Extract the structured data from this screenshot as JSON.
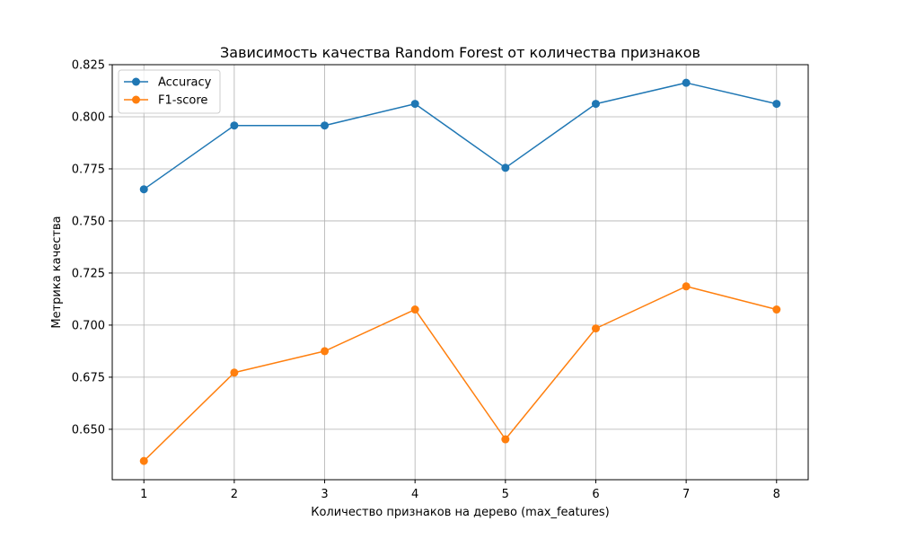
{
  "chart_data": {
    "type": "line",
    "title": "Зависимость качества Random Forest от количества признаков",
    "xlabel": "Количество признаков на дерево (max_features)",
    "ylabel": "Метрика качества",
    "x": [
      1,
      2,
      3,
      4,
      5,
      6,
      7,
      8
    ],
    "x_ticks": [
      "1",
      "2",
      "3",
      "4",
      "5",
      "6",
      "7",
      "8"
    ],
    "xlim": [
      0.65,
      8.35
    ],
    "y_ticks": [
      0.65,
      0.675,
      0.7,
      0.725,
      0.75,
      0.775,
      0.8,
      0.825
    ],
    "y_tick_labels": [
      "0.650",
      "0.675",
      "0.700",
      "0.725",
      "0.750",
      "0.775",
      "0.800",
      "0.825"
    ],
    "ylim": [
      0.6258,
      0.825
    ],
    "grid": true,
    "legend_position": "top-left",
    "series": [
      {
        "name": "Accuracy",
        "color": "#1f77b4",
        "marker": "circle",
        "values": [
          0.7652,
          0.7958,
          0.7958,
          0.8062,
          0.7755,
          0.8062,
          0.8163,
          0.8062
        ]
      },
      {
        "name": "F1-score",
        "color": "#ff7f0e",
        "marker": "circle",
        "values": [
          0.6348,
          0.6772,
          0.6875,
          0.7075,
          0.6452,
          0.6984,
          0.7186,
          0.7075
        ]
      }
    ]
  }
}
